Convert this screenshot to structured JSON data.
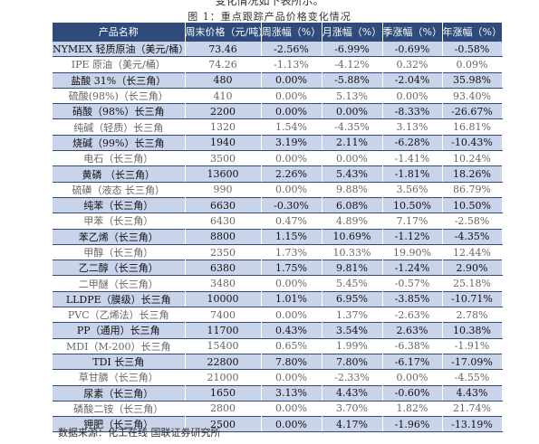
{
  "top_text": "变化情况如下表所示。",
  "caption": "图 1：重点跟踪产品价格变化情况",
  "headers": [
    "产品名称",
    "周末价格（元/吨）",
    "周涨幅（%）",
    "月涨幅（%）",
    "季涨幅（%）",
    "年涨幅（%）"
  ],
  "rows": [
    {
      "name": "NYMEX 轻质原油（美元/桶）",
      "price": "73.46",
      "week": "-2.56%",
      "month": "-6.99%",
      "quarter": "-0.69%",
      "year": "-0.58%",
      "hl": true
    },
    {
      "name": "IPE 原油（美元/桶）",
      "price": "74.26",
      "week": "-1.13%",
      "month": "-4.12%",
      "quarter": "0.32%",
      "year": "0.09%",
      "hl": false
    },
    {
      "name": "盐酸 31%（长三角）",
      "price": "480",
      "week": "0.00%",
      "month": "-5.88%",
      "quarter": "-2.04%",
      "year": "35.98%",
      "hl": true
    },
    {
      "name": "硫酸(98%)（长三角）",
      "price": "410",
      "week": "0.00%",
      "month": "5.13%",
      "quarter": "0.00%",
      "year": "93.40%",
      "hl": false
    },
    {
      "name": "硝酸（98%）长三角",
      "price": "2200",
      "week": "0.00%",
      "month": "0.00%",
      "quarter": "-8.33%",
      "year": "-26.67%",
      "hl": true
    },
    {
      "name": "纯碱（轻质）长三角",
      "price": "1320",
      "week": "1.54%",
      "month": "-4.35%",
      "quarter": "3.13%",
      "year": "16.81%",
      "hl": false
    },
    {
      "name": "烧碱（99%）长三角",
      "price": "1940",
      "week": "3.19%",
      "month": "2.11%",
      "quarter": "-6.28%",
      "year": "-10.43%",
      "hl": true
    },
    {
      "name": "电石（长三角）",
      "price": "3500",
      "week": "0.00%",
      "month": "0.00%",
      "quarter": "-1.41%",
      "year": "10.24%",
      "hl": false
    },
    {
      "name": "黄磷 （长三角）",
      "price": "13600",
      "week": "2.26%",
      "month": "5.43%",
      "quarter": "-1.81%",
      "year": "18.26%",
      "hl": true
    },
    {
      "name": "硫磺（液态 长三角）",
      "price": "990",
      "week": "0.00%",
      "month": "9.88%",
      "quarter": "3.56%",
      "year": "86.79%",
      "hl": false
    },
    {
      "name": "纯苯（长三角）",
      "price": "6630",
      "week": "-0.30%",
      "month": "6.08%",
      "quarter": "10.50%",
      "year": "10.50%",
      "hl": true
    },
    {
      "name": "甲苯（长三角）",
      "price": "6430",
      "week": "0.47%",
      "month": "4.89%",
      "quarter": "7.17%",
      "year": "-2.58%",
      "hl": false
    },
    {
      "name": "苯乙烯（长三角）",
      "price": "8800",
      "week": "1.15%",
      "month": "10.69%",
      "quarter": "-1.12%",
      "year": "-4.35%",
      "hl": true
    },
    {
      "name": "甲醇（长三角）",
      "price": "2350",
      "week": "1.73%",
      "month": "10.33%",
      "quarter": "19.90%",
      "year": "12.44%",
      "hl": false
    },
    {
      "name": "乙二醇（长三角）",
      "price": "6380",
      "week": "1.75%",
      "month": "9.81%",
      "quarter": "-1.24%",
      "year": "2.90%",
      "hl": true
    },
    {
      "name": "二甲醚（长三角）",
      "price": "3480",
      "week": "0.00%",
      "month": "5.45%",
      "quarter": "-0.57%",
      "year": "25.18%",
      "hl": false
    },
    {
      "name": "LLDPE（膜级）长三角",
      "price": "10000",
      "week": "1.01%",
      "month": "6.95%",
      "quarter": "-3.85%",
      "year": "-10.71%",
      "hl": true
    },
    {
      "name": "PVC（乙烯法）长三角",
      "price": "7400",
      "week": "0.00%",
      "month": "1.37%",
      "quarter": "-2.63%",
      "year": "2.78%",
      "hl": false
    },
    {
      "name": "PP（通用）长三角",
      "price": "11700",
      "week": "0.43%",
      "month": "3.54%",
      "quarter": "2.63%",
      "year": "10.38%",
      "hl": true
    },
    {
      "name": "MDI（M-200）长三角",
      "price": "15400",
      "week": "0.65%",
      "month": "1.99%",
      "quarter": "-6.38%",
      "year": "-1.91%",
      "hl": false
    },
    {
      "name": "TDI 长三角",
      "price": "22800",
      "week": "7.80%",
      "month": "7.80%",
      "quarter": "-6.17%",
      "year": "-17.09%",
      "hl": true
    },
    {
      "name": "草甘膦（长三角）",
      "price": "21000",
      "week": "0.00%",
      "month": "-2.33%",
      "quarter": "0.00%",
      "year": "-4.55%",
      "hl": false
    },
    {
      "name": "尿素（长三角）",
      "price": "1650",
      "week": "3.13%",
      "month": "4.43%",
      "quarter": "-0.60%",
      "year": "4.43%",
      "hl": true
    },
    {
      "name": "磷酸二铵（长三角）",
      "price": "2800",
      "week": "0.00%",
      "month": "3.70%",
      "quarter": "1.82%",
      "year": "21.74%",
      "hl": false
    },
    {
      "name": "钾肥（长三角）",
      "price": "2500",
      "week": "0.00%",
      "month": "4.17%",
      "quarter": "-1.96%",
      "year": "-13.19%",
      "hl": true
    }
  ],
  "source": "数据来源：化工在线 国联证券研究所"
}
